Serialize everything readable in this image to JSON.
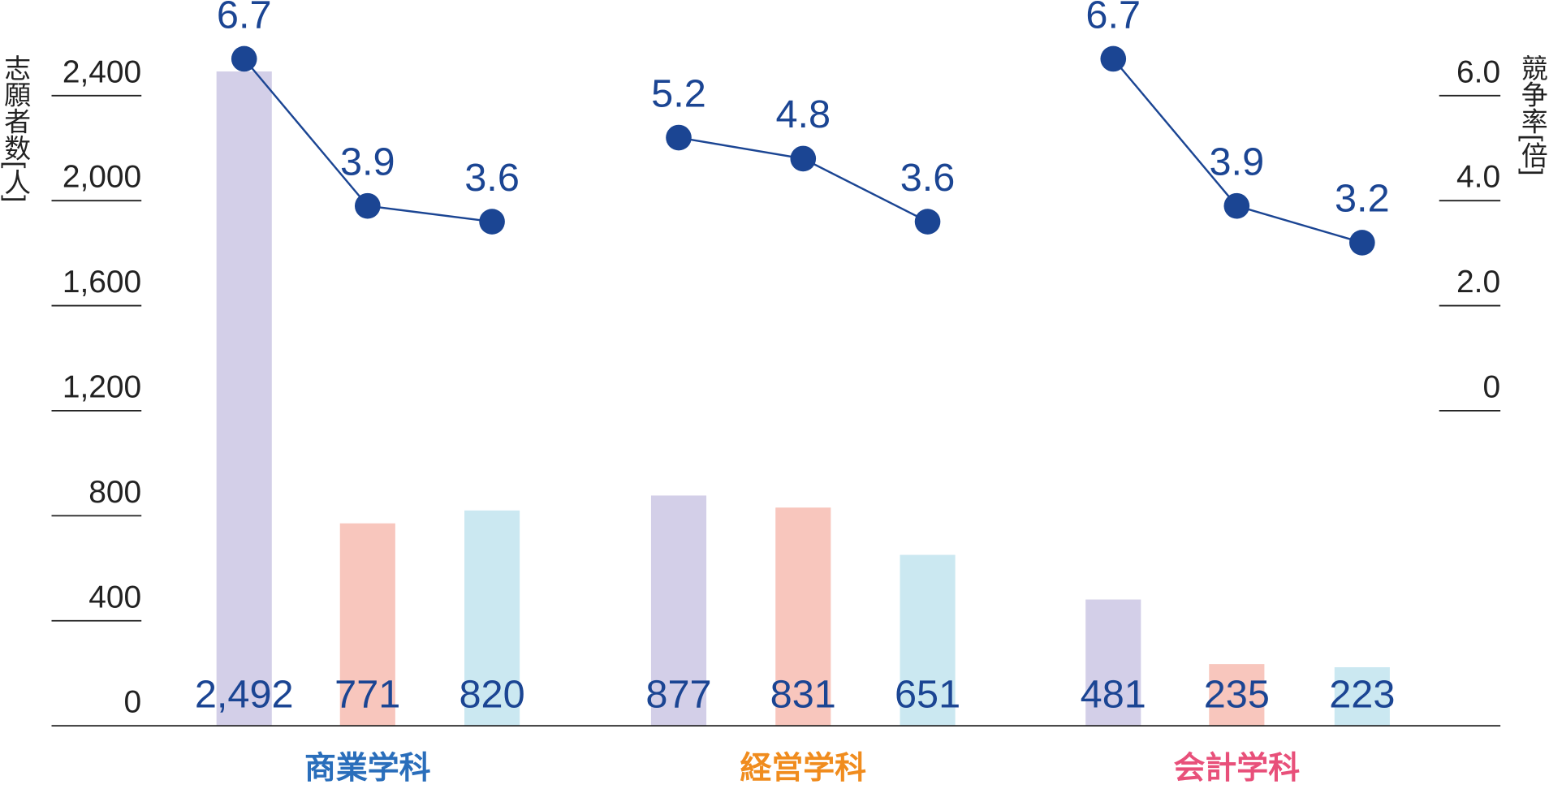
{
  "chart_data": {
    "type": "bar_line",
    "y_label": "志願者数[人]",
    "y2_label": "競争率[倍]",
    "ylim": [
      0,
      2640
    ],
    "yticks": [
      0,
      400,
      800,
      {
        "value": 1200,
        "label": "1,200"
      },
      {
        "value": 1600,
        "label": "1,600"
      },
      {
        "value": 2000,
        "label": "2,000"
      },
      {
        "value": 2400,
        "label": "2,400"
      }
    ],
    "y2lim": [
      -6,
      7.2
    ],
    "y2ticks": [
      0,
      {
        "value": 2,
        "label": "2.0"
      },
      {
        "value": 4,
        "label": "4.0"
      },
      {
        "value": 6,
        "label": "6.0"
      }
    ],
    "bar_colors": [
      "#d3cfe8",
      "#f8c6bd",
      "#cbe8f1"
    ],
    "line_color": "#1b4593",
    "groups": [
      {
        "name": "商業学科",
        "color": "#2a6ebb",
        "values": [
          2492,
          771,
          820
        ],
        "value_labels": [
          "2,492",
          "771",
          "820"
        ],
        "ratios": [
          6.7,
          3.9,
          3.6
        ],
        "ratio_labels": [
          "6.7",
          "3.9",
          "3.6"
        ]
      },
      {
        "name": "経営学科",
        "color": "#f08c1e",
        "values": [
          877,
          831,
          651
        ],
        "value_labels": [
          "877",
          "831",
          "651"
        ],
        "ratios": [
          5.2,
          4.8,
          3.6
        ],
        "ratio_labels": [
          "5.2",
          "4.8",
          "3.6"
        ]
      },
      {
        "name": "会計学科",
        "color": "#e8507a",
        "values": [
          481,
          235,
          223
        ],
        "value_labels": [
          "481",
          "235",
          "223"
        ],
        "ratios": [
          6.7,
          3.9,
          3.2
        ],
        "ratio_labels": [
          "6.7",
          "3.9",
          "3.2"
        ]
      }
    ]
  }
}
